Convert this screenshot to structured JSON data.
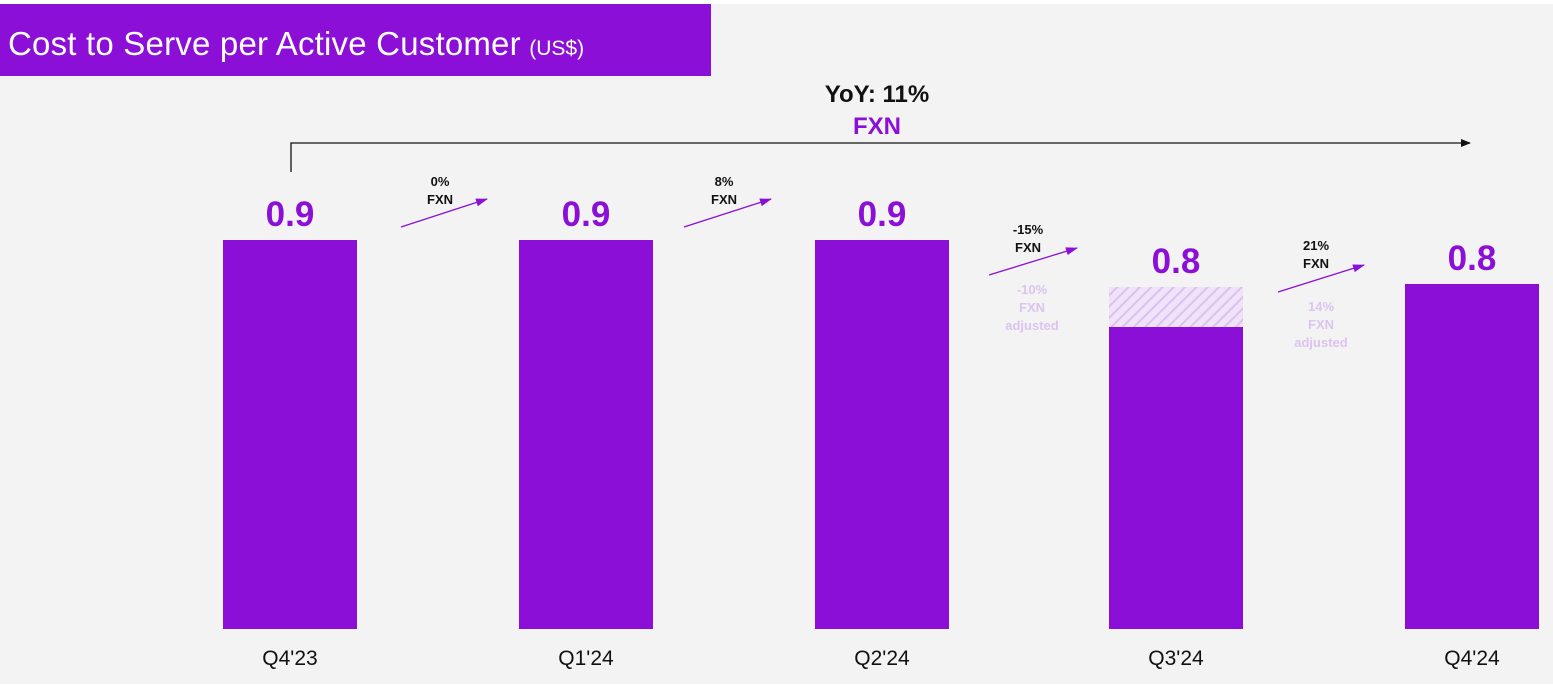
{
  "title": {
    "main": "Cost to Serve per Active Customer",
    "unit": "(US$)"
  },
  "colors": {
    "accent": "#8b0fd6",
    "hatch": "#e3c9f2",
    "adjusted_text": "#dcc3f0",
    "text": "#111111",
    "background": "#f3f3f3"
  },
  "yoy": {
    "line1": "YoY: 11%",
    "line2": "FXN"
  },
  "chart_data": {
    "type": "bar",
    "categories": [
      "Q4'23",
      "Q1'24",
      "Q2'24",
      "Q3'24",
      "Q4'24"
    ],
    "values": [
      0.9,
      0.9,
      0.9,
      0.8,
      0.8
    ],
    "value_labels": [
      "0.9",
      "0.9",
      "0.9",
      "0.8",
      "0.8"
    ],
    "fx_adjusted_extension": {
      "category": "Q3'24",
      "value": 0.84
    },
    "changes": [
      {
        "line1": "0%",
        "line2": "FXN"
      },
      {
        "line1": "8%",
        "line2": "FXN"
      },
      {
        "line1": "-15%",
        "line2": "FXN",
        "adjusted": [
          "-10%",
          "FXN",
          "adjusted"
        ]
      },
      {
        "line1": "21%",
        "line2": "FXN",
        "adjusted": [
          "14%",
          "FXN",
          "adjusted"
        ]
      }
    ],
    "ylim": [
      0,
      0.9
    ],
    "grid": false,
    "legend": "none"
  }
}
